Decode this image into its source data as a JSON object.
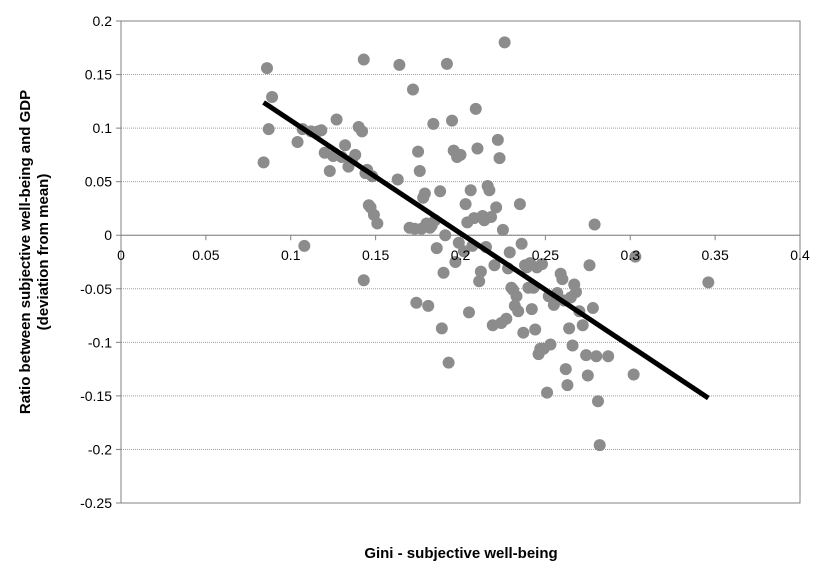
{
  "chart_data": {
    "type": "scatter",
    "title": "",
    "xlabel": "Gini - subjective well-being",
    "ylabel_line1": "Ratio between subjective well-being and GDP",
    "ylabel_line2": "(deviation from mean)",
    "xlim": [
      0,
      0.4
    ],
    "ylim": [
      -0.25,
      0.2
    ],
    "x_ticks": [
      0,
      0.05,
      0.1,
      0.15,
      0.2,
      0.25,
      0.3,
      0.35,
      0.4
    ],
    "x_tick_labels": [
      "0",
      "0.05",
      "0.1",
      "0.15",
      "0.2",
      "0.25",
      "0.3",
      "0.35",
      "0.4"
    ],
    "y_ticks": [
      0.2,
      0.15,
      0.1,
      0.05,
      0,
      -0.05,
      -0.1,
      -0.15,
      -0.2,
      -0.25
    ],
    "y_tick_labels": [
      "0.2",
      "0.15",
      "0.1",
      "0.05",
      "0",
      "-0.05",
      "-0.1",
      "-0.15",
      "-0.2",
      "-0.25"
    ],
    "grid": "horizontal",
    "legend": "none",
    "marker_color": "#8c8c8c",
    "trendline_color": "#000000",
    "trendline": {
      "x": [
        0.084,
        0.346
      ],
      "y": [
        0.124,
        -0.152
      ]
    },
    "points": [
      [
        0.084,
        0.068
      ],
      [
        0.086,
        0.156
      ],
      [
        0.087,
        0.099
      ],
      [
        0.089,
        0.129
      ],
      [
        0.104,
        0.087
      ],
      [
        0.107,
        0.099
      ],
      [
        0.108,
        -0.01
      ],
      [
        0.112,
        0.097
      ],
      [
        0.116,
        0.097
      ],
      [
        0.118,
        0.098
      ],
      [
        0.12,
        0.077
      ],
      [
        0.123,
        0.06
      ],
      [
        0.125,
        0.074
      ],
      [
        0.127,
        0.108
      ],
      [
        0.13,
        0.073
      ],
      [
        0.132,
        0.084
      ],
      [
        0.134,
        0.064
      ],
      [
        0.136,
        0.07
      ],
      [
        0.138,
        0.075
      ],
      [
        0.14,
        0.101
      ],
      [
        0.142,
        0.097
      ],
      [
        0.143,
        0.164
      ],
      [
        0.143,
        -0.042
      ],
      [
        0.144,
        0.058
      ],
      [
        0.145,
        0.061
      ],
      [
        0.146,
        0.028
      ],
      [
        0.147,
        0.026
      ],
      [
        0.148,
        0.055
      ],
      [
        0.149,
        0.019
      ],
      [
        0.151,
        0.011
      ],
      [
        0.163,
        0.052
      ],
      [
        0.164,
        0.159
      ],
      [
        0.17,
        0.007
      ],
      [
        0.172,
        0.136
      ],
      [
        0.173,
        0.006
      ],
      [
        0.174,
        -0.063
      ],
      [
        0.175,
        0.078
      ],
      [
        0.176,
        0.06
      ],
      [
        0.177,
        0.006
      ],
      [
        0.178,
        0.035
      ],
      [
        0.179,
        0.039
      ],
      [
        0.18,
        0.011
      ],
      [
        0.181,
        -0.066
      ],
      [
        0.182,
        0.007
      ],
      [
        0.183,
        0.009
      ],
      [
        0.184,
        0.104
      ],
      [
        0.185,
        0.014
      ],
      [
        0.186,
        -0.012
      ],
      [
        0.188,
        0.041
      ],
      [
        0.189,
        -0.087
      ],
      [
        0.19,
        -0.035
      ],
      [
        0.191,
        0.0
      ],
      [
        0.192,
        0.16
      ],
      [
        0.193,
        -0.119
      ],
      [
        0.195,
        0.107
      ],
      [
        0.196,
        0.079
      ],
      [
        0.197,
        -0.025
      ],
      [
        0.198,
        0.073
      ],
      [
        0.199,
        -0.007
      ],
      [
        0.2,
        0.075
      ],
      [
        0.202,
        -0.015
      ],
      [
        0.203,
        0.029
      ],
      [
        0.204,
        0.012
      ],
      [
        0.205,
        -0.072
      ],
      [
        0.206,
        0.042
      ],
      [
        0.207,
        -0.01
      ],
      [
        0.208,
        0.016
      ],
      [
        0.209,
        0.118
      ],
      [
        0.21,
        0.081
      ],
      [
        0.211,
        -0.043
      ],
      [
        0.212,
        -0.034
      ],
      [
        0.213,
        0.018
      ],
      [
        0.214,
        0.014
      ],
      [
        0.215,
        -0.011
      ],
      [
        0.216,
        0.046
      ],
      [
        0.217,
        0.042
      ],
      [
        0.218,
        0.017
      ],
      [
        0.219,
        -0.084
      ],
      [
        0.22,
        -0.028
      ],
      [
        0.221,
        0.026
      ],
      [
        0.222,
        0.089
      ],
      [
        0.223,
        0.072
      ],
      [
        0.224,
        -0.082
      ],
      [
        0.225,
        0.005
      ],
      [
        0.226,
        0.18
      ],
      [
        0.227,
        -0.078
      ],
      [
        0.228,
        -0.031
      ],
      [
        0.229,
        -0.016
      ],
      [
        0.23,
        -0.049
      ],
      [
        0.231,
        -0.051
      ],
      [
        0.232,
        -0.066
      ],
      [
        0.233,
        -0.057
      ],
      [
        0.234,
        -0.071
      ],
      [
        0.235,
        0.029
      ],
      [
        0.236,
        -0.008
      ],
      [
        0.237,
        -0.091
      ],
      [
        0.238,
        -0.028
      ],
      [
        0.239,
        -0.03
      ],
      [
        0.24,
        -0.049
      ],
      [
        0.241,
        -0.026
      ],
      [
        0.242,
        -0.069
      ],
      [
        0.243,
        -0.049
      ],
      [
        0.244,
        -0.088
      ],
      [
        0.245,
        -0.03
      ],
      [
        0.246,
        -0.111
      ],
      [
        0.247,
        -0.106
      ],
      [
        0.248,
        -0.027
      ],
      [
        0.249,
        -0.106
      ],
      [
        0.251,
        -0.147
      ],
      [
        0.252,
        -0.057
      ],
      [
        0.253,
        -0.102
      ],
      [
        0.255,
        -0.065
      ],
      [
        0.257,
        -0.054
      ],
      [
        0.259,
        -0.036
      ],
      [
        0.26,
        -0.041
      ],
      [
        0.261,
        -0.061
      ],
      [
        0.262,
        -0.125
      ],
      [
        0.263,
        -0.14
      ],
      [
        0.264,
        -0.087
      ],
      [
        0.265,
        -0.058
      ],
      [
        0.266,
        -0.103
      ],
      [
        0.267,
        -0.046
      ],
      [
        0.268,
        -0.053
      ],
      [
        0.27,
        -0.071
      ],
      [
        0.272,
        -0.084
      ],
      [
        0.274,
        -0.112
      ],
      [
        0.275,
        -0.131
      ],
      [
        0.276,
        -0.028
      ],
      [
        0.278,
        -0.068
      ],
      [
        0.279,
        0.01
      ],
      [
        0.28,
        -0.113
      ],
      [
        0.281,
        -0.155
      ],
      [
        0.282,
        -0.196
      ],
      [
        0.287,
        -0.113
      ],
      [
        0.302,
        -0.13
      ],
      [
        0.303,
        -0.02
      ],
      [
        0.346,
        -0.044
      ]
    ]
  }
}
